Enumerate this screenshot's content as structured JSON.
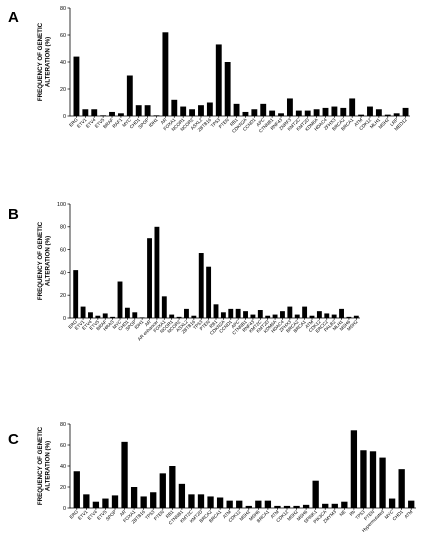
{
  "chart_data": [
    {
      "type": "bar",
      "panel": "A",
      "ylabel": "FREQUENCY OF GENETIC ALTERATION (%)",
      "ylim": [
        0,
        80
      ],
      "yticks": [
        0,
        20,
        40,
        60,
        80
      ],
      "grid": false,
      "categories": [
        "ERG",
        "ETV1",
        "ETV4",
        "ETV5",
        "BRAF",
        "RAF1",
        "MYC",
        "CHD1",
        "SPOP",
        "IDH1",
        "AR",
        "FOXA1",
        "NCOR1",
        "NCOR2",
        "ASXL2",
        "ZBTB16",
        "TP53",
        "PTEN",
        "RB1",
        "CDKN2A",
        "CCND1",
        "APC",
        "CTNNB1",
        "RNF43",
        "ZNRF3",
        "KMT2C",
        "KMT2D",
        "KDM6A",
        "HDAC4",
        "ZFHX3",
        "BRCA2",
        "BRCA1",
        "ATM",
        "CDK12",
        "MLH1",
        "MSH2",
        "LRP",
        "MED12"
      ],
      "values": [
        44,
        5,
        5,
        0.5,
        3,
        2,
        30,
        8,
        8,
        0.5,
        62,
        12,
        7,
        5,
        8,
        10,
        53,
        40,
        9,
        3,
        5,
        9,
        4,
        2,
        13,
        4,
        4,
        5,
        6,
        7,
        6,
        13,
        1,
        7,
        5,
        1,
        2,
        6
      ]
    },
    {
      "type": "bar",
      "panel": "B",
      "ylabel": "FREQUENCY OF GENETIC ALTERATION (%)",
      "ylim": [
        0,
        100
      ],
      "yticks": [
        0,
        20,
        40,
        60,
        80,
        100
      ],
      "grid": false,
      "categories": [
        "ERG",
        "ETV1",
        "ETV4",
        "ETV5",
        "BRAF",
        "HRAS",
        "MYC",
        "CHD1",
        "SPOP",
        "IDH1",
        "AR",
        "AR enhancer",
        "FOXA1",
        "NCOR1",
        "NCOR2",
        "ASXL2",
        "ZBTB16",
        "TP53",
        "PTEN",
        "RB1",
        "CDKN2A",
        "CCND1",
        "APC",
        "CTNNB1",
        "RNF43",
        "KMT2C",
        "KMT2D",
        "KDM6A",
        "HDAC4",
        "ZFHX3",
        "BRCA2",
        "BRCA1",
        "ATM",
        "CDK12",
        "ERCC2",
        "PALB2",
        "MLH1",
        "MSH6",
        "MSH2"
      ],
      "values": [
        42,
        10,
        5,
        2,
        4,
        1,
        32,
        9,
        5,
        0.5,
        70,
        80,
        19,
        3,
        1,
        8,
        2,
        57,
        45,
        12,
        5,
        8,
        8,
        6,
        3,
        7,
        2,
        3,
        6,
        10,
        3,
        10,
        2,
        6,
        4,
        3,
        8,
        1,
        2
      ]
    },
    {
      "type": "bar",
      "panel": "C",
      "ylabel": "FREQUENCY OF GENETIC ALTERATION (%)",
      "ylim": [
        0,
        80
      ],
      "yticks": [
        0,
        20,
        40,
        60,
        80
      ],
      "grid": false,
      "categories": [
        "ERG",
        "ETV1",
        "ETV4",
        "ETV5",
        "SPOP",
        "AR",
        "FOXA1",
        "ZBTB16",
        "TP53",
        "PTEN",
        "RB1",
        "CTNNB1",
        "KMT2C",
        "KMT2D",
        "BRCA2",
        "BRCA1",
        "ATM",
        "CDK12",
        "MSH2",
        "MSH6",
        "BRCA1",
        "ATM",
        "CDK12",
        "MSH2",
        "MSH6",
        "SPINK1",
        "PIK3CA",
        "ZMYM3",
        "NE",
        "Rb",
        "TP53",
        "PTEN",
        "Hypermutated",
        "MYC",
        "CHD1",
        "ATM"
      ],
      "values": [
        35,
        13,
        6,
        9,
        12,
        63,
        20,
        11,
        15,
        33,
        40,
        23,
        13,
        13,
        11,
        10,
        7,
        7,
        2,
        7,
        7,
        2,
        2,
        2,
        3,
        26,
        4,
        4,
        6,
        74,
        55,
        54,
        48,
        9,
        37,
        7
      ]
    }
  ]
}
